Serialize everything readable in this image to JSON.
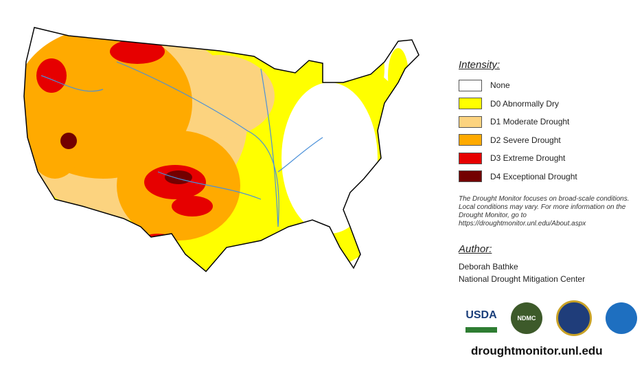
{
  "legend": {
    "title": "Intensity:",
    "items": [
      {
        "label": "None",
        "color": "#ffffff"
      },
      {
        "label": "D0 Abnormally Dry",
        "color": "#ffff00"
      },
      {
        "label": "D1 Moderate Drought",
        "color": "#fcd37f"
      },
      {
        "label": "D2 Severe Drought",
        "color": "#ffaa00"
      },
      {
        "label": "D3 Extreme Drought",
        "color": "#e60000"
      },
      {
        "label": "D4 Exceptional Drought",
        "color": "#730000"
      }
    ]
  },
  "note": "The Drought Monitor focuses on broad-scale conditions. Local conditions may vary. For more information on the Drought Monitor, go to https://droughtmonitor.unl.edu/About.aspx",
  "author": {
    "title": "Author:",
    "name": "Deborah Bathke",
    "organization": "National Drought Mitigation Center"
  },
  "logos": [
    "USDA",
    "NDMC"
  ],
  "url": "droughtmonitor.unl.edu"
}
